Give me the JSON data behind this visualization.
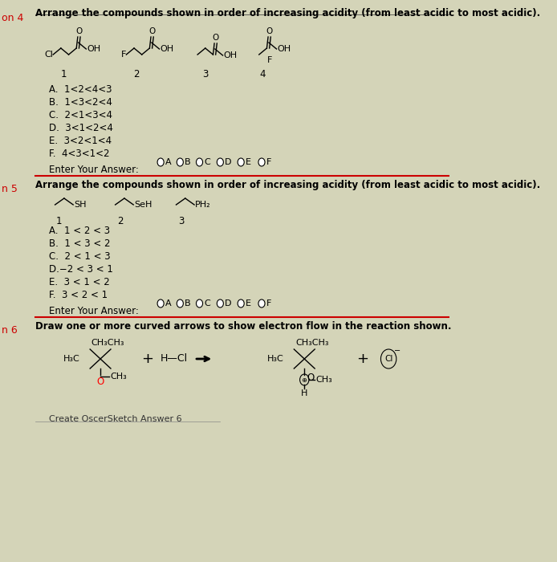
{
  "background_color": "#d4d4b8",
  "question_label_color": "#cc0000",
  "divider_color": "#cc0000",
  "q4_label": "on 4",
  "q5_label": "n 5",
  "q6_label": "n 6",
  "q4_title": "Arrange the compounds shown in order of increasing acidity (from least acidic to most acidic).",
  "q5_title": "Arrange the compounds shown in order of increasing acidity (from least acidic to most acidic).",
  "q6_title": "Draw one or more curved arrows to show electron flow in the reaction shown.",
  "q4_options": [
    "A.  1<2<4<3",
    "B.  1<3<2<4",
    "C.  2<1<3<4",
    "D.  3<1<2<4",
    "E.  3<2<1<4",
    "F.  4<3<1<2"
  ],
  "q5_options": [
    "A.  1 < 2 < 3",
    "B.  1 < 3 < 2",
    "C.  2 < 1 < 3",
    "D.−2 < 3 < 1",
    "E.  3 < 1 < 2",
    "F.  3 < 2 < 1"
  ],
  "q4_answer_label": "Enter Your Answer:",
  "q5_answer_label": "Enter Your Answer:",
  "q4_radio_labels": [
    "A",
    "B",
    "C",
    "D",
    "E",
    "F"
  ],
  "q5_radio_labels": [
    "A",
    "B",
    "C",
    "D",
    "E",
    "F"
  ],
  "q6_bottom_label": "Create OscerSketch Answer 6"
}
